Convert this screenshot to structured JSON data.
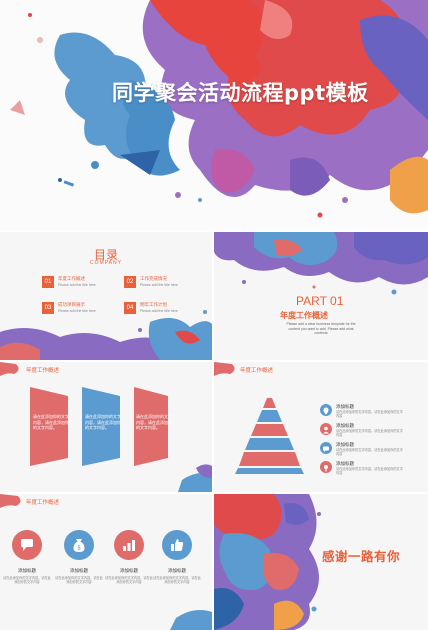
{
  "hero": {
    "title": "同学聚会活动流程ppt模板"
  },
  "toc": {
    "title": "目录",
    "subtitle": "COMPANY",
    "items": [
      {
        "num": "01",
        "label": "年度工作概述",
        "desc": "Please add the title here"
      },
      {
        "num": "02",
        "label": "工作完成情况",
        "desc": "Please add the title here"
      },
      {
        "num": "03",
        "label": "成功项目展示",
        "desc": "Please add the title here"
      },
      {
        "num": "04",
        "label": "明年工作计划",
        "desc": "Please add the title here"
      }
    ]
  },
  "part": {
    "number": "PART 01",
    "title": "年度工作概述",
    "desc": "Please add a clear business template for the content you want to add. Please add what contents"
  },
  "arrows": {
    "section_label": "年度工作概述",
    "cards": [
      {
        "text": "请在此添加你的文字内容，请在此添加你的文字内容。",
        "color": "#e06b6b"
      },
      {
        "text": "请在此添加你的文字内容，请在此添加你的文字内容。",
        "color": "#5b9bd0"
      },
      {
        "text": "请在此添加你的文字内容，请在此添加你的文字内容。",
        "color": "#e06b6b"
      }
    ]
  },
  "pyramid": {
    "section_label": "年度工作概述",
    "items": [
      {
        "label": "添加标题",
        "desc": "请在此添加你的文字内容，请在此添加你的文字内容",
        "color": "#5b9bd0",
        "icon": "location-icon"
      },
      {
        "label": "添加标题",
        "desc": "请在此添加你的文字内容，请在此添加你的文字内容",
        "color": "#e06b6b",
        "icon": "user-icon"
      },
      {
        "label": "添加标题",
        "desc": "请在此添加你的文字内容，请在此添加你的文字内容",
        "color": "#5b9bd0",
        "icon": "chat-icon"
      },
      {
        "label": "添加标题",
        "desc": "请在此添加你的文字内容，请在此添加你的文字内容",
        "color": "#e06b6b",
        "icon": "pin-icon"
      }
    ]
  },
  "icons": {
    "section_label": "年度工作概述",
    "items": [
      {
        "label": "添加标题",
        "desc": "请在此添加你的文字内容，请在此添加你的文字内容",
        "icon": "chat-icon"
      },
      {
        "label": "添加标题",
        "desc": "请在此添加你的文字内容，请在此添加你的文字内容",
        "icon": "money-bag-icon"
      },
      {
        "label": "添加标题",
        "desc": "请在此添加你的文字内容，请在此添加你的文字内容",
        "icon": "bar-chart-icon"
      },
      {
        "label": "添加标题",
        "desc": "请在此添加你的文字内容，请在此添加你的文字内容",
        "icon": "thumbs-up-icon"
      }
    ]
  },
  "thanks": {
    "text": "感谢一路有你"
  },
  "colors": {
    "accent": "#e8613a",
    "red": "#e06b6b",
    "blue": "#5b9bd0",
    "purple": "#8a6bc2"
  }
}
